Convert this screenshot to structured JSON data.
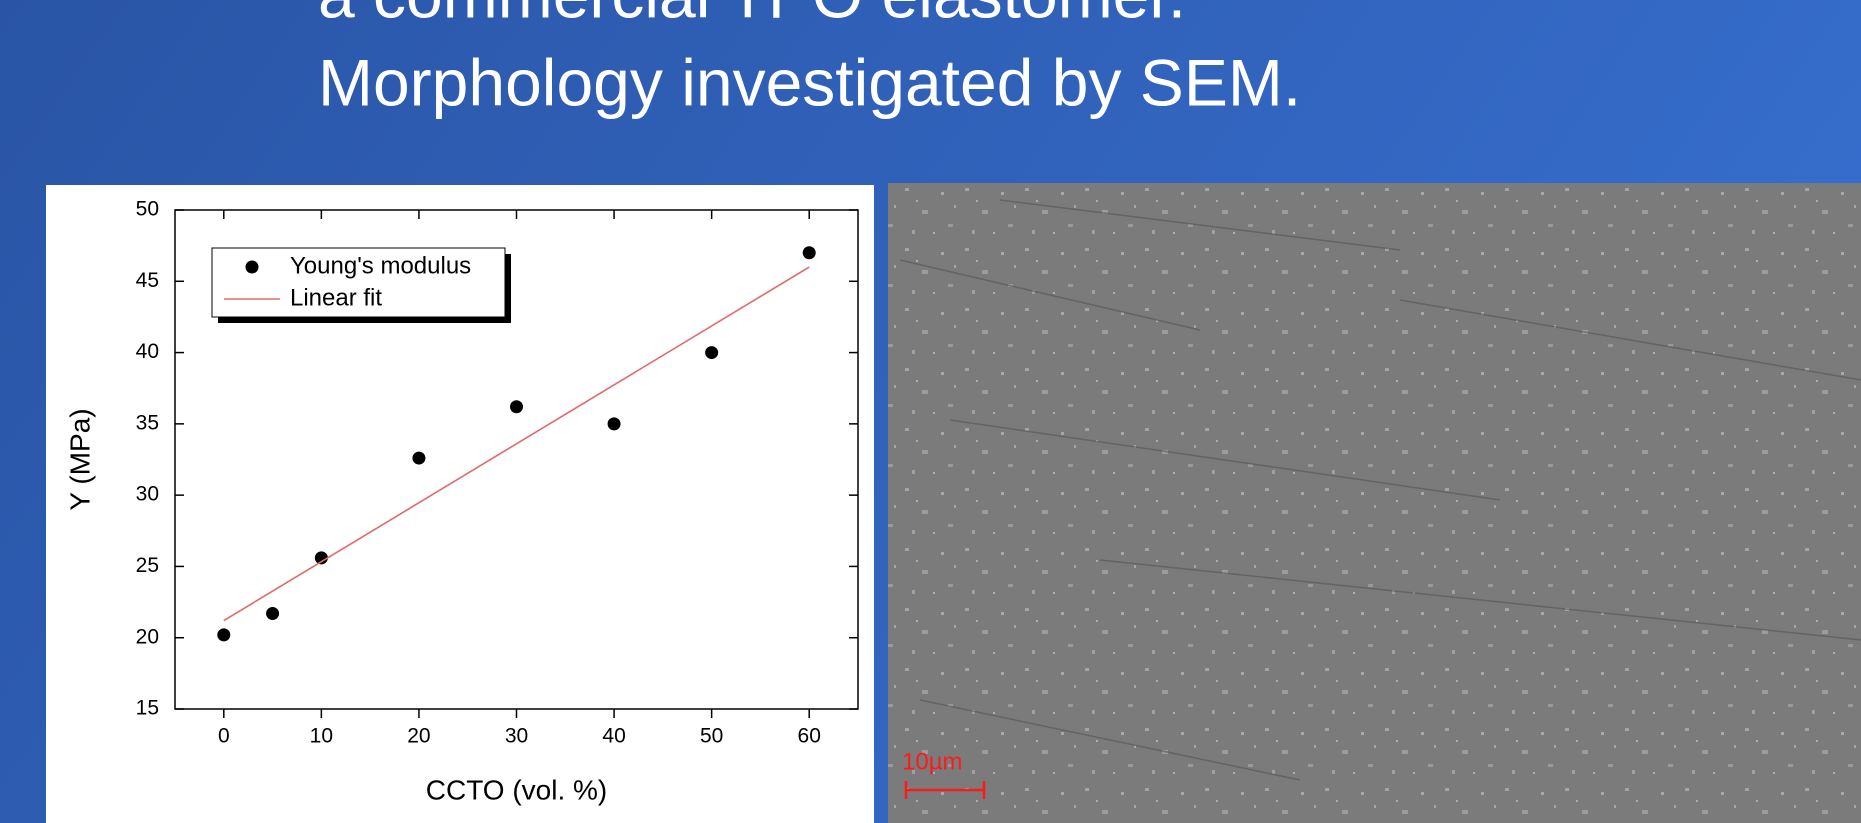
{
  "slide": {
    "title_lines": [
      "a commercial TPO elastomer.",
      "Morphology investigated by SEM."
    ],
    "scale_bar_label": "10µm"
  },
  "chart_data": {
    "type": "scatter",
    "x_label": "CCTO (vol. %)",
    "y_label": "Y (MPa)",
    "series": [
      {
        "name": "Young's modulus",
        "color": "#000000",
        "x": [
          0,
          5,
          10,
          20,
          30,
          40,
          50,
          60
        ],
        "values": [
          20.2,
          21.7,
          25.6,
          32.6,
          36.2,
          35.0,
          40.0,
          47.0
        ]
      },
      {
        "name": "Linear fit",
        "color": "#e06a6a",
        "x": [
          0,
          60
        ],
        "values": [
          21.2,
          46.0
        ]
      }
    ],
    "xlim": [
      -5,
      65
    ],
    "xticks": [
      0,
      10,
      20,
      30,
      40,
      50,
      60
    ],
    "ylim": [
      15,
      50
    ],
    "yticks": [
      15,
      20,
      25,
      30,
      35,
      40,
      45,
      50
    ],
    "grid": false
  }
}
